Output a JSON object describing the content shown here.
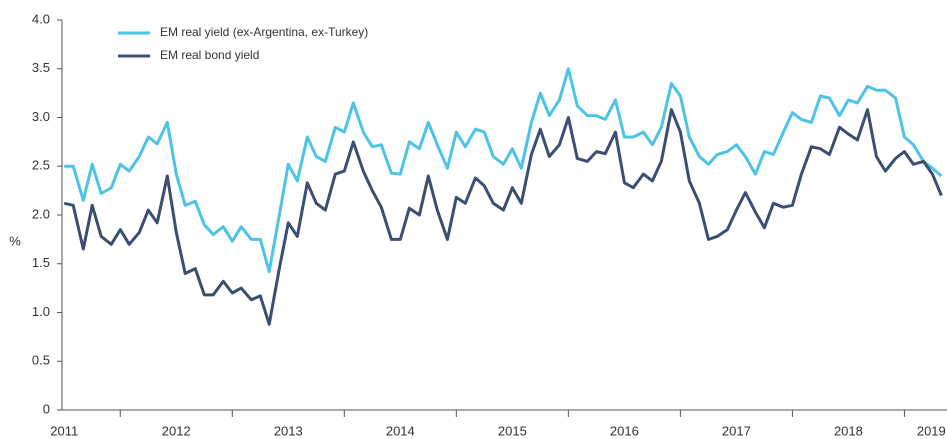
{
  "chart_data": {
    "type": "line",
    "y_label": "%",
    "x": [
      2011.5,
      2011.58,
      2011.67,
      2011.75,
      2011.83,
      2011.92,
      2012,
      2012.08,
      2012.17,
      2012.25,
      2012.33,
      2012.42,
      2012.5,
      2012.58,
      2012.67,
      2012.75,
      2012.83,
      2012.92,
      2013,
      2013.08,
      2013.17,
      2013.25,
      2013.33,
      2013.42,
      2013.5,
      2013.58,
      2013.67,
      2013.75,
      2013.83,
      2013.92,
      2014,
      2014.08,
      2014.17,
      2014.25,
      2014.33,
      2014.42,
      2014.5,
      2014.58,
      2014.67,
      2014.75,
      2014.83,
      2014.92,
      2015,
      2015.08,
      2015.17,
      2015.25,
      2015.33,
      2015.42,
      2015.5,
      2015.58,
      2015.67,
      2015.75,
      2015.83,
      2015.92,
      2016,
      2016.08,
      2016.17,
      2016.25,
      2016.33,
      2016.42,
      2016.5,
      2016.58,
      2016.67,
      2016.75,
      2016.83,
      2016.92,
      2017,
      2017.08,
      2017.17,
      2017.25,
      2017.33,
      2017.42,
      2017.5,
      2017.58,
      2017.67,
      2017.75,
      2017.83,
      2017.92,
      2018,
      2018.08,
      2018.17,
      2018.25,
      2018.33,
      2018.42,
      2018.5,
      2018.58,
      2018.67,
      2018.75,
      2018.83,
      2018.92,
      2019,
      2019.08,
      2019.17,
      2019.25,
      2019.33
    ],
    "series": [
      {
        "name": "EM real yield (ex-Argentina, ex-Turkey)",
        "color": "#4dc3e6",
        "values": [
          2.5,
          2.5,
          2.15,
          2.52,
          2.22,
          2.28,
          2.52,
          2.45,
          2.6,
          2.8,
          2.73,
          2.95,
          2.42,
          2.1,
          2.14,
          1.9,
          1.8,
          1.88,
          1.73,
          1.88,
          1.75,
          1.75,
          1.42,
          2.0,
          2.52,
          2.35,
          2.8,
          2.6,
          2.55,
          2.9,
          2.85,
          3.15,
          2.85,
          2.7,
          2.72,
          2.43,
          2.42,
          2.75,
          2.68,
          2.95,
          2.72,
          2.48,
          2.85,
          2.7,
          2.88,
          2.85,
          2.6,
          2.52,
          2.68,
          2.48,
          2.95,
          3.25,
          3.02,
          3.18,
          3.5,
          3.12,
          3.02,
          3.02,
          2.98,
          3.18,
          2.8,
          2.8,
          2.85,
          2.72,
          2.9,
          3.35,
          3.22,
          2.8,
          2.6,
          2.52,
          2.62,
          2.65,
          2.72,
          2.6,
          2.42,
          2.65,
          2.62,
          2.85,
          3.05,
          2.98,
          2.95,
          3.22,
          3.2,
          3.02,
          3.18,
          3.15,
          3.32,
          3.28,
          3.28,
          3.2,
          2.8,
          2.72,
          2.55,
          2.48,
          2.4
        ]
      },
      {
        "name": "EM real bond yield",
        "color": "#3b4e73",
        "values": [
          2.12,
          2.1,
          1.65,
          2.1,
          1.78,
          1.7,
          1.85,
          1.7,
          1.82,
          2.05,
          1.92,
          2.4,
          1.82,
          1.4,
          1.45,
          1.18,
          1.18,
          1.32,
          1.2,
          1.25,
          1.13,
          1.17,
          0.88,
          1.45,
          1.92,
          1.78,
          2.33,
          2.12,
          2.05,
          2.42,
          2.45,
          2.75,
          2.45,
          2.25,
          2.08,
          1.75,
          1.75,
          2.07,
          2.0,
          2.4,
          2.05,
          1.75,
          2.18,
          2.12,
          2.38,
          2.3,
          2.12,
          2.05,
          2.28,
          2.12,
          2.62,
          2.88,
          2.6,
          2.72,
          3.0,
          2.58,
          2.55,
          2.65,
          2.63,
          2.85,
          2.33,
          2.28,
          2.42,
          2.35,
          2.55,
          3.08,
          2.85,
          2.35,
          2.12,
          1.75,
          1.78,
          1.85,
          2.05,
          2.23,
          2.03,
          1.87,
          2.12,
          2.08,
          2.1,
          2.42,
          2.7,
          2.68,
          2.62,
          2.9,
          2.83,
          2.77,
          3.08,
          2.6,
          2.45,
          2.58,
          2.65,
          2.52,
          2.55,
          2.42,
          2.2
        ]
      }
    ],
    "xlim": [
      2011.48,
      2019.38
    ],
    "year_boundaries": [
      2012,
      2013,
      2014,
      2015,
      2016,
      2017,
      2018,
      2019
    ],
    "xticks": [
      {
        "value": 2011.5,
        "label": "2011"
      },
      {
        "value": 2012.5,
        "label": "2012"
      },
      {
        "value": 2013.5,
        "label": "2013"
      },
      {
        "value": 2014.5,
        "label": "2014"
      },
      {
        "value": 2015.5,
        "label": "2015"
      },
      {
        "value": 2016.5,
        "label": "2016"
      },
      {
        "value": 2017.5,
        "label": "2017"
      },
      {
        "value": 2018.5,
        "label": "2018"
      },
      {
        "value": 2019.24,
        "label": "2019"
      }
    ],
    "ylim": [
      0,
      4
    ],
    "yticks": [
      0,
      {
        "value": 0.5,
        "label": "0.5"
      },
      {
        "value": 1,
        "label": "1.0"
      },
      {
        "value": 1.5,
        "label": "1.5"
      },
      {
        "value": 2,
        "label": "2.0"
      },
      {
        "value": 2.5,
        "label": "2.5"
      },
      {
        "value": 3,
        "label": "3.0"
      },
      {
        "value": 3.5,
        "label": "3.5"
      },
      {
        "value": 4,
        "label": "4.0"
      }
    ],
    "legend": "top-left"
  }
}
